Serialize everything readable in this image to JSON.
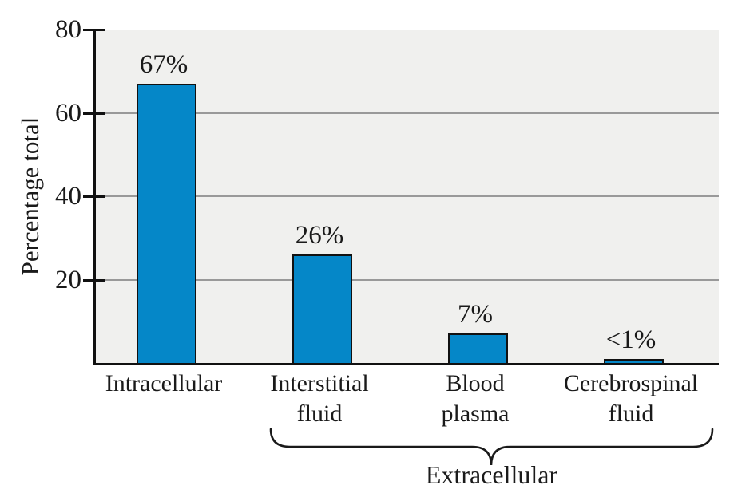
{
  "chart_data": {
    "type": "bar",
    "title": "",
    "xlabel": "",
    "ylabel": "Percentage total",
    "categories": [
      "Intracellular",
      "Interstitial\nfluid",
      "Blood\nplasma",
      "Cerebrospinal\nfluid"
    ],
    "values": [
      67,
      26,
      7,
      0.9
    ],
    "value_labels": [
      "67%",
      "26%",
      "7%",
      "<1%"
    ],
    "ylim": [
      0,
      80
    ],
    "yticks": [
      80,
      60,
      40,
      20
    ],
    "gridlines": [
      60,
      40,
      20
    ],
    "grid": true,
    "legend_position": "none",
    "bar_color": "#0587c8",
    "bar_border_color": "#111111",
    "plot_background": "#f0f0ee",
    "gridline_color": "#999999",
    "group_annotation": {
      "label": "Extracellular",
      "applies_to": [
        "Interstitial fluid",
        "Blood plasma",
        "Cerebrospinal fluid"
      ]
    }
  }
}
